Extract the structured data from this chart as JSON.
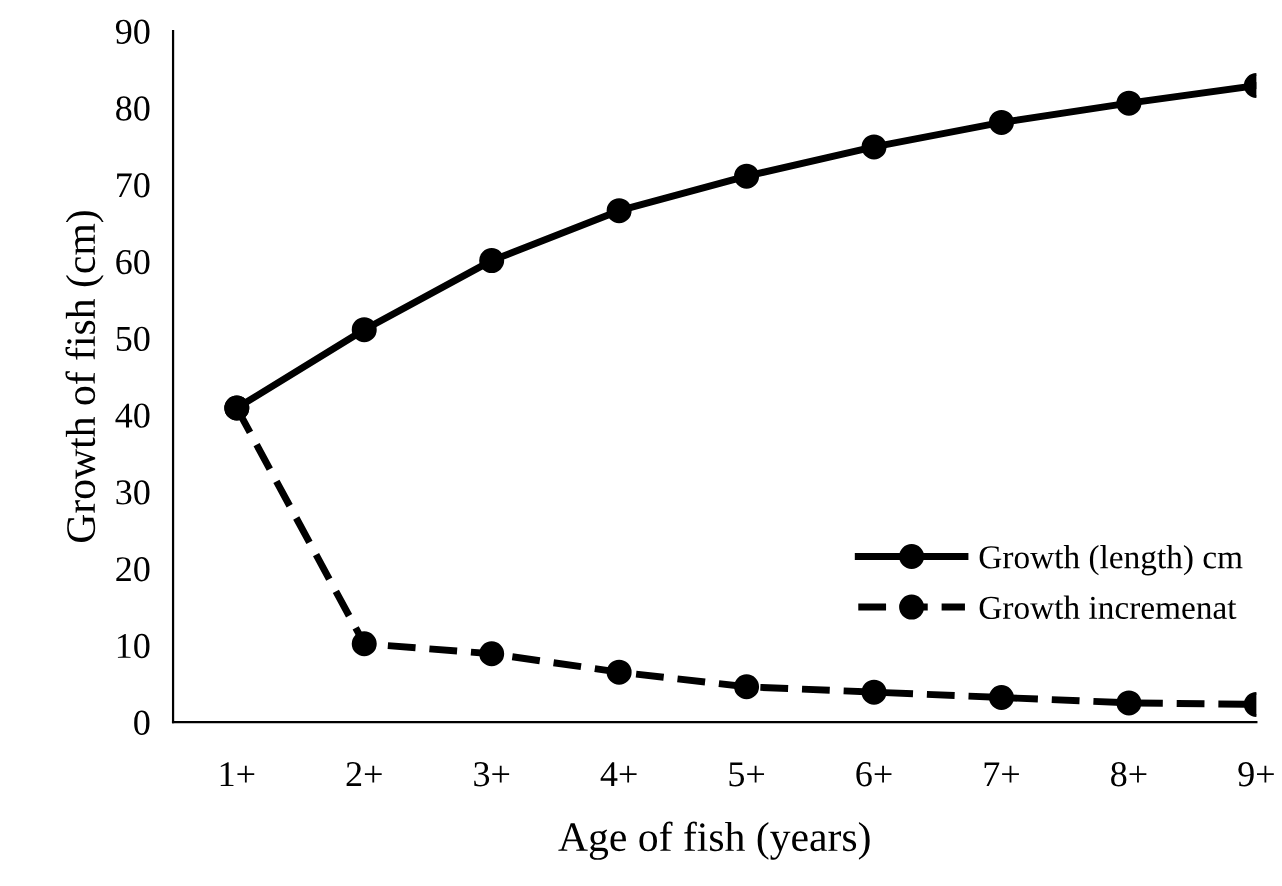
{
  "chart_data": {
    "type": "line",
    "xlabel": "Age of fish (years)",
    "ylabel": "Growth of fish (cm)",
    "categories": [
      "1+",
      "2+",
      "3+",
      "4+",
      "5+",
      "6+",
      "7+",
      "8+",
      "9+"
    ],
    "series": [
      {
        "name": "Growth (length) cm",
        "color": "#000000",
        "line_style": "solid",
        "values": [
          40.9,
          51.1,
          60.1,
          66.6,
          71.1,
          74.9,
          78.1,
          80.6,
          82.9
        ]
      },
      {
        "name": "Growth incremenat",
        "color": "#000000",
        "line_style": "dashed",
        "values": [
          40.9,
          10.2,
          8.9,
          6.5,
          4.6,
          3.9,
          3.2,
          2.5,
          2.3
        ]
      }
    ],
    "ylim": [
      0,
      90
    ],
    "yticks": [
      0,
      10,
      20,
      30,
      40,
      50,
      60,
      70,
      80,
      90
    ],
    "grid": false,
    "legend": "bottom right",
    "marker": "circle"
  }
}
